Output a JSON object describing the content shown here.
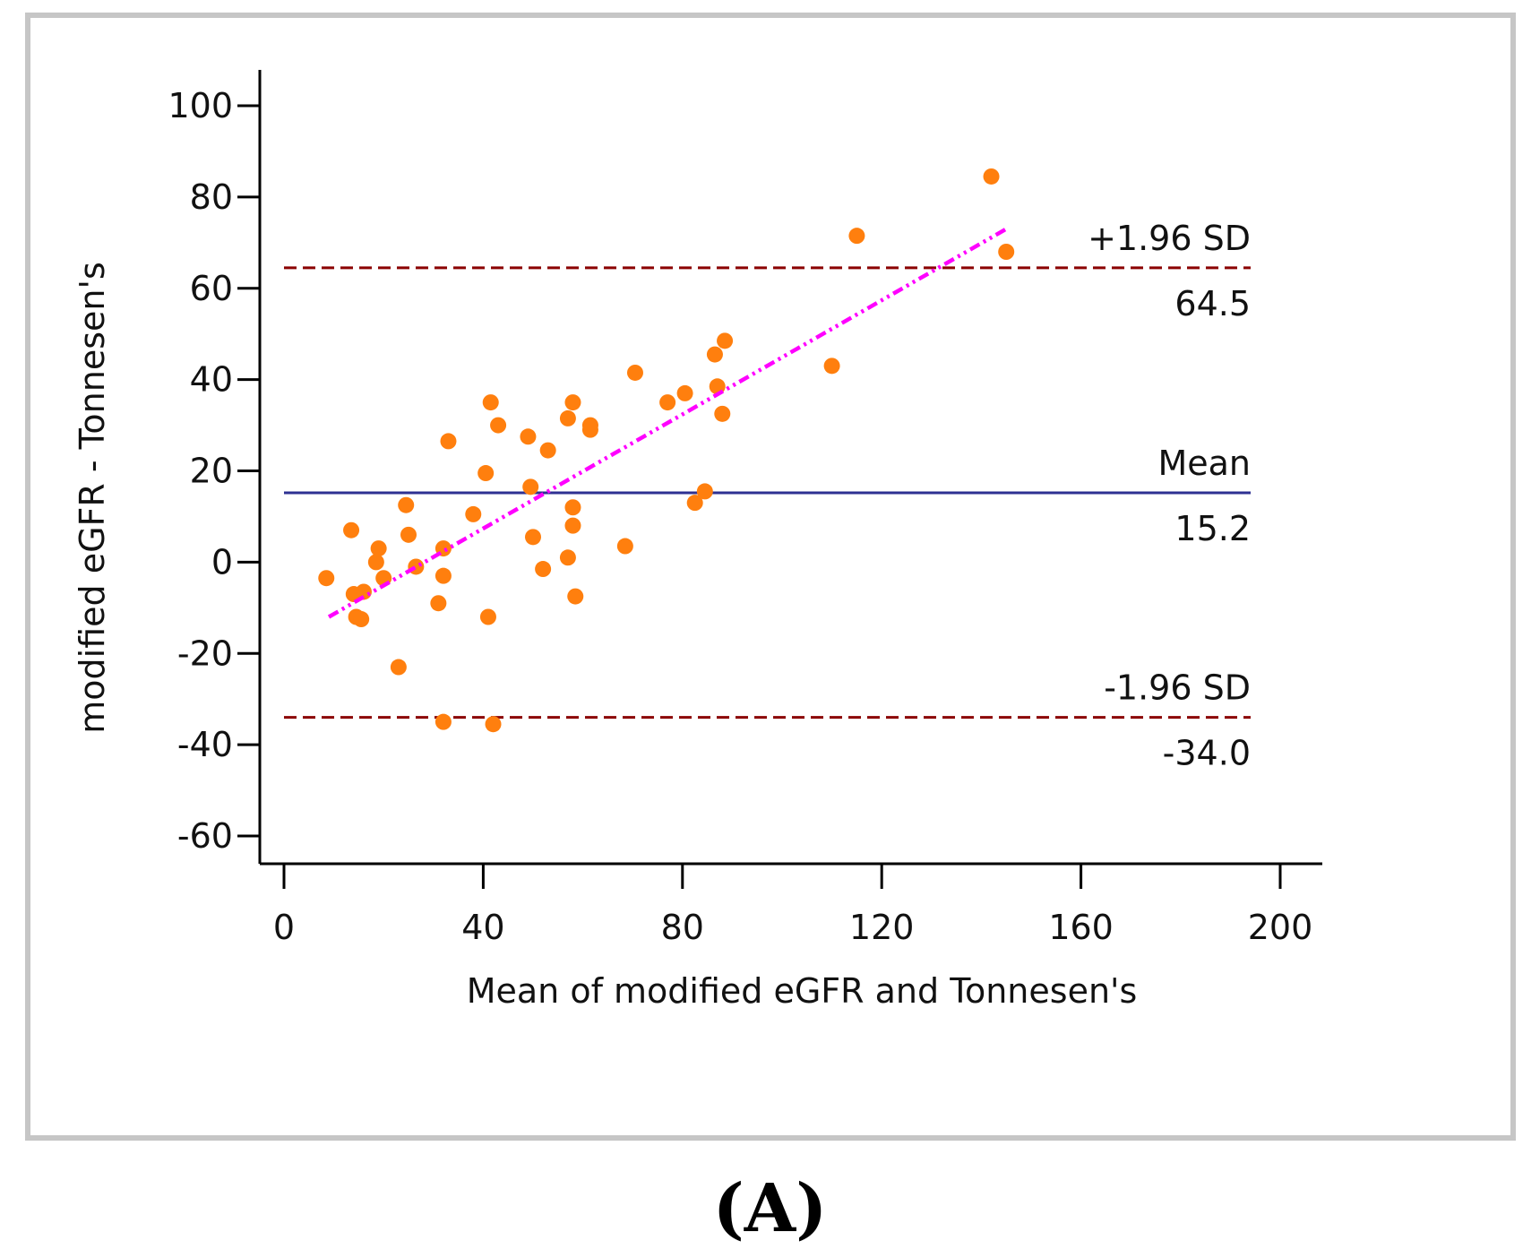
{
  "chart_data": {
    "type": "scatter",
    "title": "",
    "xlabel": "Mean of modified eGFR and Tonnesen's",
    "ylabel": "modified eGFR - Tonnesen's",
    "xlim": [
      0,
      200
    ],
    "ylim": [
      -60,
      100
    ],
    "xticks": [
      0,
      40,
      80,
      120,
      160,
      200
    ],
    "yticks": [
      -60,
      -40,
      -20,
      0,
      20,
      40,
      60,
      80,
      100
    ],
    "point_color": "#ff7f0e",
    "points": [
      [
        8.5,
        -3.5
      ],
      [
        13.5,
        7
      ],
      [
        14,
        -7
      ],
      [
        14.5,
        -12
      ],
      [
        15.5,
        -12.5
      ],
      [
        16,
        -6.5
      ],
      [
        18.5,
        0
      ],
      [
        19,
        3
      ],
      [
        20,
        -3.5
      ],
      [
        23,
        -23
      ],
      [
        24.5,
        12.5
      ],
      [
        25,
        6
      ],
      [
        26.5,
        -1
      ],
      [
        31,
        -9
      ],
      [
        32,
        3
      ],
      [
        32,
        -3
      ],
      [
        32,
        -35
      ],
      [
        33,
        26.5
      ],
      [
        38,
        10.5
      ],
      [
        40.5,
        19.5
      ],
      [
        41,
        -12
      ],
      [
        41.5,
        35
      ],
      [
        42,
        -35.5
      ],
      [
        43,
        30
      ],
      [
        49,
        27.5
      ],
      [
        49.5,
        16.5
      ],
      [
        50,
        5.5
      ],
      [
        52,
        -1.5
      ],
      [
        53,
        24.5
      ],
      [
        57,
        1
      ],
      [
        57,
        31.5
      ],
      [
        58,
        35
      ],
      [
        58,
        8
      ],
      [
        58,
        12
      ],
      [
        58.5,
        -7.5
      ],
      [
        61.5,
        30
      ],
      [
        61.5,
        29
      ],
      [
        68.5,
        3.5
      ],
      [
        70.5,
        41.5
      ],
      [
        77,
        35
      ],
      [
        80.5,
        37
      ],
      [
        82.5,
        13
      ],
      [
        84.5,
        15.5
      ],
      [
        86.5,
        45.5
      ],
      [
        87,
        38.5
      ],
      [
        88,
        32.5
      ],
      [
        88.5,
        48.5
      ],
      [
        110,
        43
      ],
      [
        115,
        71.5
      ],
      [
        142,
        84.5
      ],
      [
        145,
        68
      ]
    ],
    "regression_line": {
      "from": [
        9,
        -12
      ],
      "to": [
        145,
        73
      ],
      "color": "#ff00ff",
      "style": "dash-dot-dot"
    },
    "reference_lines": [
      {
        "name": "upper-loa",
        "value": 64.5,
        "label": "+1.96 SD",
        "value_label": "64.5",
        "color": "#8b0000",
        "style": "dashed"
      },
      {
        "name": "mean",
        "value": 15.2,
        "label": "Mean",
        "value_label": "15.2",
        "color": "#2e3192",
        "style": "solid"
      },
      {
        "name": "lower-loa",
        "value": -34.0,
        "label": "-1.96 SD",
        "value_label": "-34.0",
        "color": "#8b0000",
        "style": "dashed"
      }
    ]
  },
  "panel_label": "(A)"
}
